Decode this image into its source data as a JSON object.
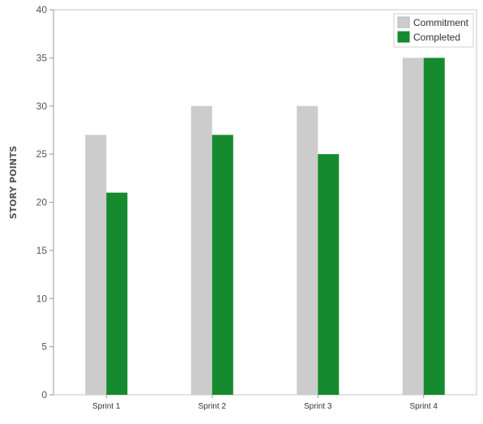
{
  "chart_data": {
    "type": "bar",
    "title": "",
    "xlabel": "",
    "ylabel": "STORY POINTS",
    "categories": [
      "Sprint 1",
      "Sprint 2",
      "Sprint 3",
      "Sprint 4"
    ],
    "series": [
      {
        "name": "Commitment",
        "values": [
          27,
          30,
          30,
          35
        ],
        "color": "#cccccc"
      },
      {
        "name": "Completed",
        "values": [
          21,
          27,
          25,
          35
        ],
        "color": "#168a2e"
      }
    ],
    "ylim": [
      0,
      40
    ],
    "yticks": [
      0,
      5,
      10,
      15,
      20,
      25,
      30,
      35,
      40
    ],
    "grid": false,
    "legend": "top-right"
  }
}
